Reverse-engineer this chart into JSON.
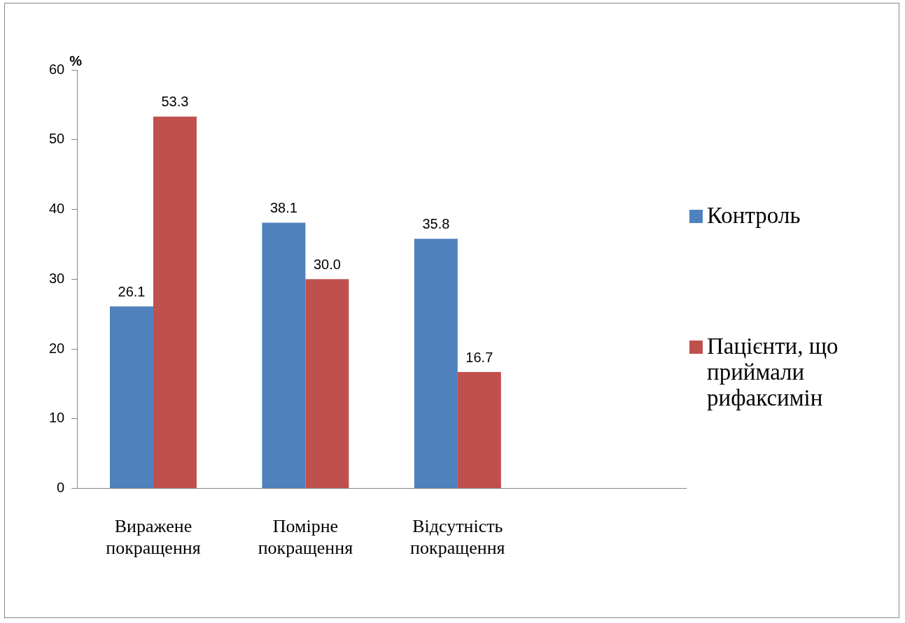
{
  "chart_data": {
    "type": "bar",
    "ylabel": "%",
    "categories": [
      "Виражене покращення",
      "Помірне покращення",
      "Відсутність покращення",
      null
    ],
    "series": [
      {
        "name": "Контроль",
        "color": "#4f81bd",
        "values": [
          26.1,
          38.1,
          35.8,
          null
        ],
        "value_labels": [
          "26.1",
          "38.1",
          "35.8",
          null
        ]
      },
      {
        "name": "Пацієнти, що приймали рифаксимін",
        "color": "#c0504d",
        "values": [
          53.3,
          30.0,
          16.7,
          null
        ],
        "value_labels": [
          "53.3",
          "30.0",
          "16.7",
          null
        ]
      }
    ],
    "ylim": [
      0,
      60
    ],
    "yticks": [
      0,
      10,
      20,
      30,
      40,
      50,
      60
    ],
    "grid": false,
    "legend": "right"
  }
}
